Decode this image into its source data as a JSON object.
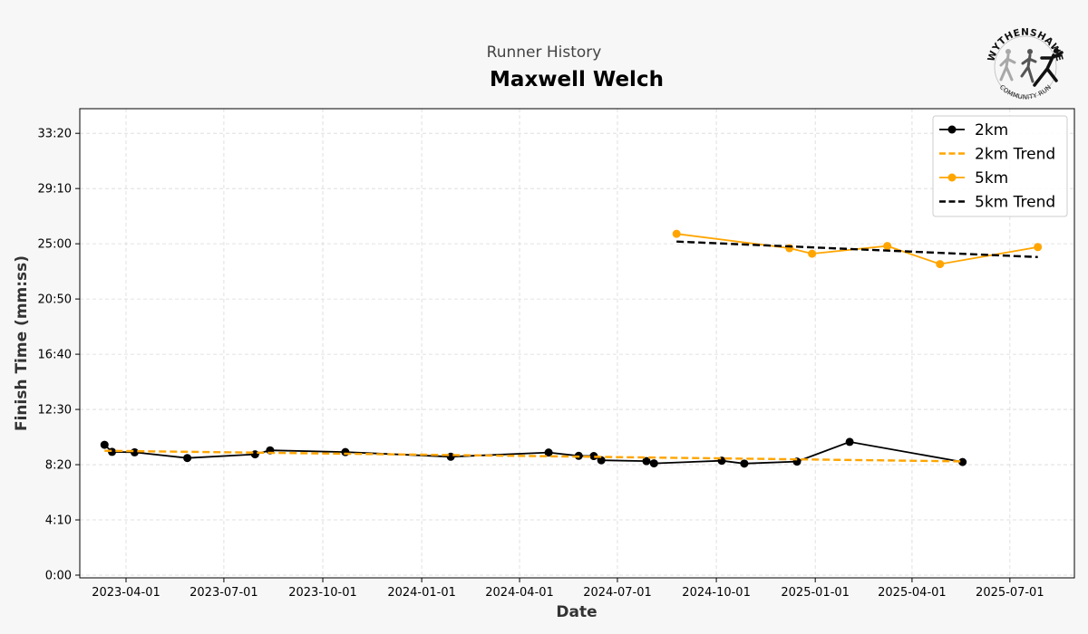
{
  "header": {
    "subtitle": "Runner History",
    "title": "Maxwell Welch"
  },
  "logo": {
    "top_text": "WYTHENSHAWE",
    "bottom_text": "COMMUNITY RUN"
  },
  "chart_data": {
    "type": "line",
    "xlabel": "Date",
    "ylabel": "Finish Time (mm:ss)",
    "x_ticks": [
      "2023-04-01",
      "2023-07-01",
      "2023-10-01",
      "2024-01-01",
      "2024-04-01",
      "2024-07-01",
      "2024-10-01",
      "2025-01-01",
      "2025-04-01",
      "2025-07-01"
    ],
    "y_ticks": [
      "0:00",
      "4:10",
      "8:20",
      "12:30",
      "16:40",
      "20:50",
      "25:00",
      "29:10",
      "33:20"
    ],
    "ylim_seconds": [
      0,
      2050
    ],
    "xlim": [
      "2023-02-17",
      "2025-08-30"
    ],
    "grid": true,
    "legend_position": "top-right",
    "series": [
      {
        "name": "2km",
        "color": "#000000",
        "style": "solid",
        "marker": true,
        "points": [
          {
            "date": "2023-03-12",
            "seconds": 590
          },
          {
            "date": "2023-03-19",
            "seconds": 558
          },
          {
            "date": "2023-04-09",
            "seconds": 556
          },
          {
            "date": "2023-05-28",
            "seconds": 530
          },
          {
            "date": "2023-07-30",
            "seconds": 547
          },
          {
            "date": "2023-08-13",
            "seconds": 565
          },
          {
            "date": "2023-10-22",
            "seconds": 557
          },
          {
            "date": "2024-01-28",
            "seconds": 536
          },
          {
            "date": "2024-04-28",
            "seconds": 555
          },
          {
            "date": "2024-05-26",
            "seconds": 540
          },
          {
            "date": "2024-06-09",
            "seconds": 539
          },
          {
            "date": "2024-06-16",
            "seconds": 520
          },
          {
            "date": "2024-07-28",
            "seconds": 516
          },
          {
            "date": "2024-08-04",
            "seconds": 506
          },
          {
            "date": "2024-10-06",
            "seconds": 518
          },
          {
            "date": "2024-10-27",
            "seconds": 505
          },
          {
            "date": "2024-12-15",
            "seconds": 514
          },
          {
            "date": "2025-02-02",
            "seconds": 603
          },
          {
            "date": "2025-05-18",
            "seconds": 512
          }
        ]
      },
      {
        "name": "2km Trend",
        "color": "#ffa500",
        "style": "dashed",
        "marker": false,
        "points": [
          {
            "date": "2023-03-12",
            "seconds": 563
          },
          {
            "date": "2025-05-18",
            "seconds": 515
          }
        ]
      },
      {
        "name": "5km",
        "color": "#ffa500",
        "style": "solid",
        "marker": true,
        "points": [
          {
            "date": "2024-08-25",
            "seconds": 1545
          },
          {
            "date": "2024-12-08",
            "seconds": 1480
          },
          {
            "date": "2024-12-29",
            "seconds": 1455
          },
          {
            "date": "2025-03-09",
            "seconds": 1490
          },
          {
            "date": "2025-04-27",
            "seconds": 1408
          },
          {
            "date": "2025-07-27",
            "seconds": 1485
          }
        ]
      },
      {
        "name": "5km Trend",
        "color": "#000000",
        "style": "dashed",
        "marker": false,
        "points": [
          {
            "date": "2024-08-25",
            "seconds": 1510
          },
          {
            "date": "2025-07-27",
            "seconds": 1440
          }
        ]
      }
    ]
  }
}
